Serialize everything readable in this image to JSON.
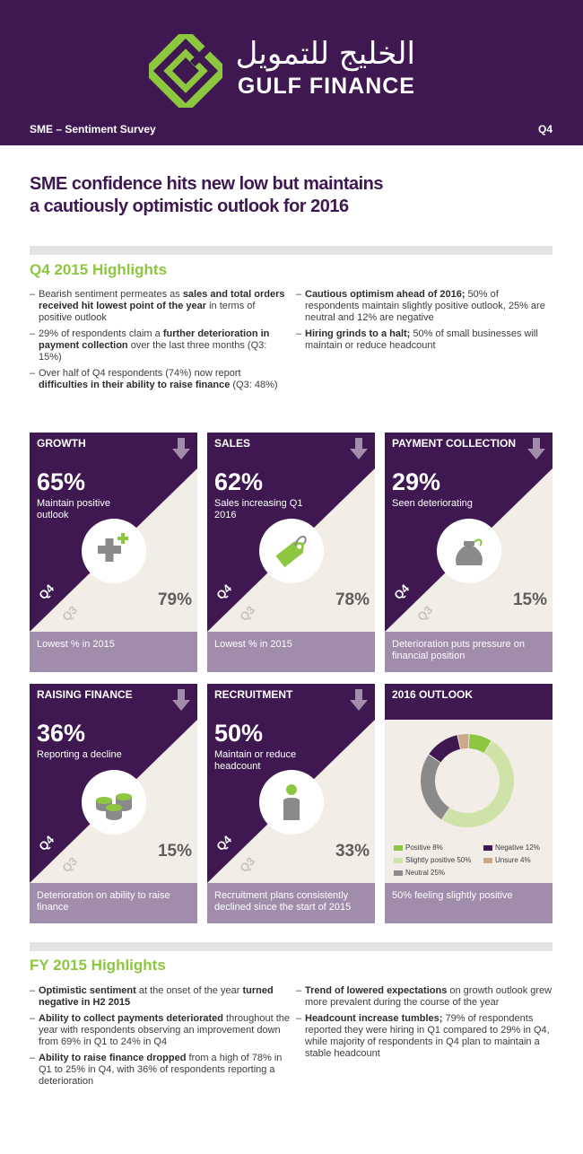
{
  "header": {
    "logo_arabic": "الخليج للتمويل",
    "logo_latin": "GULF FINANCE",
    "left_label": "SME – Sentiment Survey",
    "right_label": "Q4"
  },
  "headline": {
    "line1": "SME confidence hits new low but maintains",
    "line2": "a cautiously optimistic outlook for 2016"
  },
  "q4_highlights": {
    "title": "Q4 2015 Highlights",
    "left": [
      {
        "pre": "Bearish sentiment permeates as ",
        "bold": "sales and total orders received hit lowest point of the year",
        "post": " in terms of positive outlook"
      },
      {
        "pre": "29% of respondents claim a ",
        "bold": "further deterioration in payment collection",
        "post": " over the last three months (Q3: 15%)"
      },
      {
        "pre": "Over half of Q4 respondents (74%) now report ",
        "bold": "difficulties in their ability to raise finance",
        "post": " (Q3: 48%)"
      }
    ],
    "right": [
      {
        "pre": "",
        "bold": "Cautious optimism ahead of 2016;",
        "post": " 50% of respondents maintain slightly positive outlook, 25% are neutral and 12% are negative"
      },
      {
        "pre": "",
        "bold": "Hiring grinds to a halt;",
        "post": " 50% of small businesses will maintain or reduce headcount"
      }
    ]
  },
  "tiles": [
    {
      "title": "GROWTH",
      "pct": "65%",
      "sub": "Maintain positive outlook",
      "q4": "Q4",
      "q3": "Q3",
      "prev": "79%",
      "foot": "Lowest % in 2015",
      "icon": "plus-icon"
    },
    {
      "title": "SALES",
      "pct": "62%",
      "sub": "Sales increasing Q1 2016",
      "q4": "Q4",
      "q3": "Q3",
      "prev": "78%",
      "foot": "Lowest % in 2015",
      "icon": "price-tag-icon"
    },
    {
      "title": "PAYMENT COLLECTION",
      "pct": "29%",
      "sub": "Seen deteriorating",
      "q4": "Q4",
      "q3": "Q3",
      "prev": "15%",
      "foot": "Deterioration puts pressure on financial position",
      "icon": "money-bag-icon"
    },
    {
      "title": "RAISING FINANCE",
      "pct": "36%",
      "sub": "Reporting a decline",
      "q4": "Q4",
      "q3": "Q3",
      "prev": "15%",
      "foot": "Deterioration on ability to raise finance",
      "icon": "coin-stacks-icon"
    },
    {
      "title": "RECRUITMENT",
      "pct": "50%",
      "sub": "Maintain or reduce headcount",
      "q4": "Q4",
      "q3": "Q3",
      "prev": "33%",
      "foot": "Recruitment plans consistently declined since the start of 2015",
      "icon": "person-icon"
    }
  ],
  "outlook": {
    "title": "2016 OUTLOOK",
    "foot": "50% feeling slightly positive"
  },
  "chart_data": {
    "type": "pie",
    "title": "2016 OUTLOOK",
    "categories": [
      "Positive",
      "Slightly positive",
      "Neutral",
      "Negative",
      "Unsure"
    ],
    "values": [
      8,
      50,
      25,
      12,
      4
    ],
    "labels": [
      "Positive 8%",
      "Slightly positive 50%",
      "Neutral 25%",
      "Negative 12%",
      "Unsure 4%"
    ],
    "colors": [
      "#8dc63f",
      "#cfe3a8",
      "#8a8a8a",
      "#3f1851",
      "#c9a98a"
    ]
  },
  "fy_highlights": {
    "title": "FY 2015 Highlights",
    "left": [
      {
        "bold": "Optimistic sentiment",
        "mid": " at the onset of the year ",
        "bold2": "turned negative in H2 2015",
        "post": ""
      },
      {
        "bold": "Ability to collect payments deteriorated",
        "mid": " throughout the year with respondents observing an improvement down from 69% in Q1 to 24% in Q4",
        "bold2": "",
        "post": ""
      },
      {
        "bold": "Ability to raise finance dropped",
        "mid": " from a high of 78% in Q1 to 25% in Q4, with 36% of respondents reporting a deterioration",
        "bold2": "",
        "post": ""
      }
    ],
    "right": [
      {
        "bold": "Trend of lowered expectations",
        "mid": " on growth outlook grew more prevalent during the course of the year",
        "bold2": "",
        "post": ""
      },
      {
        "bold": "Headcount increase tumbles;",
        "mid": " 79% of respondents reported they were hiring in Q1 compared to 29% in Q4, while majority of respondents in Q4 plan to maintain a stable headcount",
        "bold2": "",
        "post": ""
      }
    ]
  }
}
